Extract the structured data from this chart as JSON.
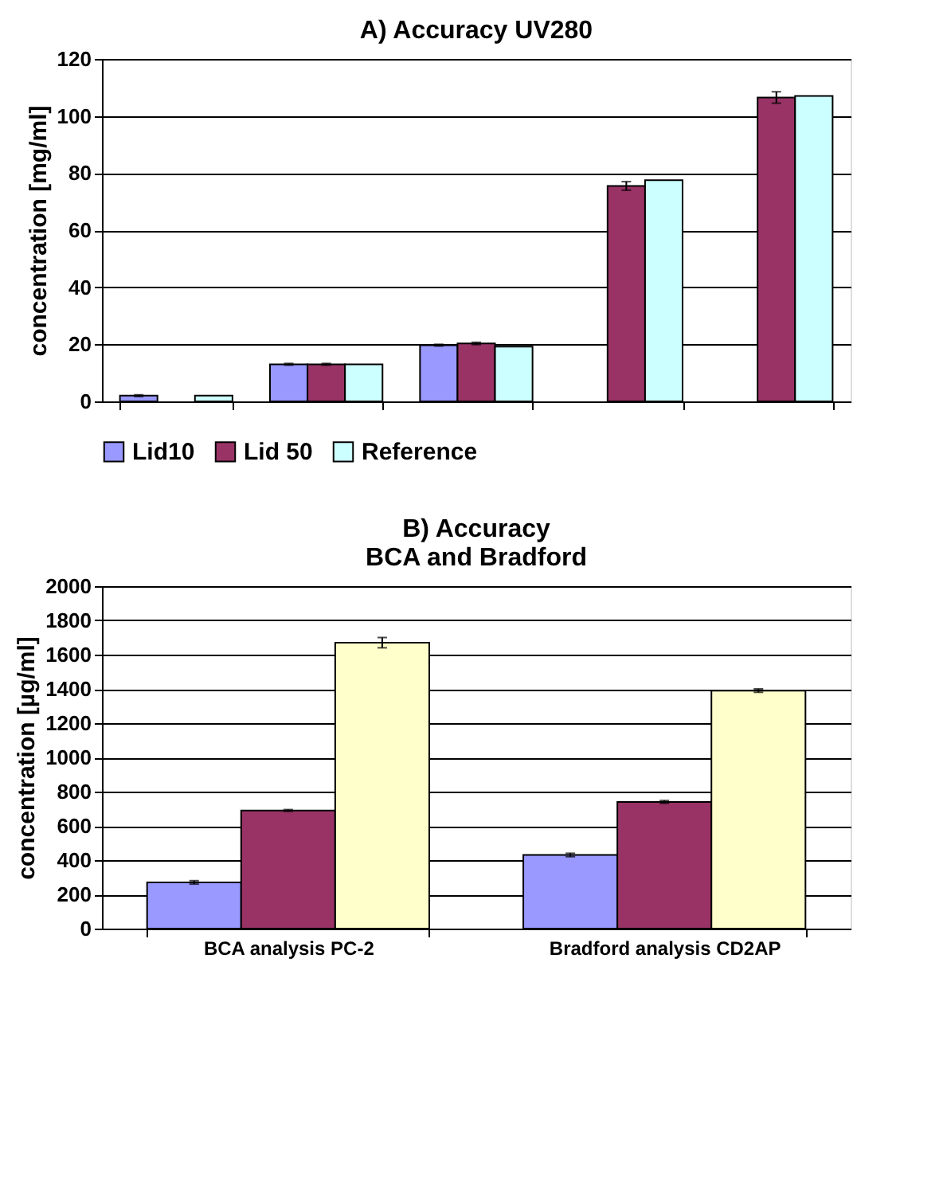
{
  "chart_data": [
    {
      "type": "bar",
      "title": "A) Accuracy UV280",
      "ylabel": "concentration [mg/ml]",
      "categories": [
        null,
        null,
        null,
        null,
        null
      ],
      "series": [
        {
          "name": "Lid10",
          "color": "#9999ff",
          "values": [
            2,
            13,
            19.7,
            null,
            null
          ],
          "errors": [
            0.3,
            0.3,
            0.3,
            null,
            null
          ]
        },
        {
          "name": "Lid 50",
          "color": "#993366",
          "values": [
            null,
            13,
            20.3,
            75.5,
            106.5
          ],
          "errors": [
            null,
            0.3,
            0.4,
            1.5,
            2
          ]
        },
        {
          "name": "Reference",
          "color": "#ccffff",
          "values": [
            2,
            13,
            19.2,
            77.5,
            107
          ]
        }
      ],
      "ylim": [
        0,
        120
      ],
      "yticks": [
        0,
        20,
        40,
        60,
        80,
        100,
        120
      ],
      "grid": "y",
      "legend": "bottom",
      "tick_labels": "y"
    },
    {
      "type": "bar",
      "title": "B) Accuracy\nBCA and Bradford",
      "ylabel": "concentration [µg/ml]",
      "categories": [
        "BCA analysis PC-2",
        "Bradford analysis CD2AP"
      ],
      "series": [
        {
          "color": "#9999ff",
          "values": [
            270,
            430
          ],
          "errors": [
            10,
            10
          ]
        },
        {
          "color": "#993366",
          "values": [
            690,
            740
          ],
          "errors": [
            5,
            8
          ]
        },
        {
          "color": "#ffffcc",
          "values": [
            1670,
            1390
          ],
          "errors": [
            30,
            10
          ]
        }
      ],
      "ylim": [
        0,
        2000
      ],
      "yticks": [
        0,
        200,
        400,
        600,
        800,
        1000,
        1200,
        1400,
        1600,
        1800,
        2000
      ],
      "grid": "y",
      "legend": false
    }
  ]
}
